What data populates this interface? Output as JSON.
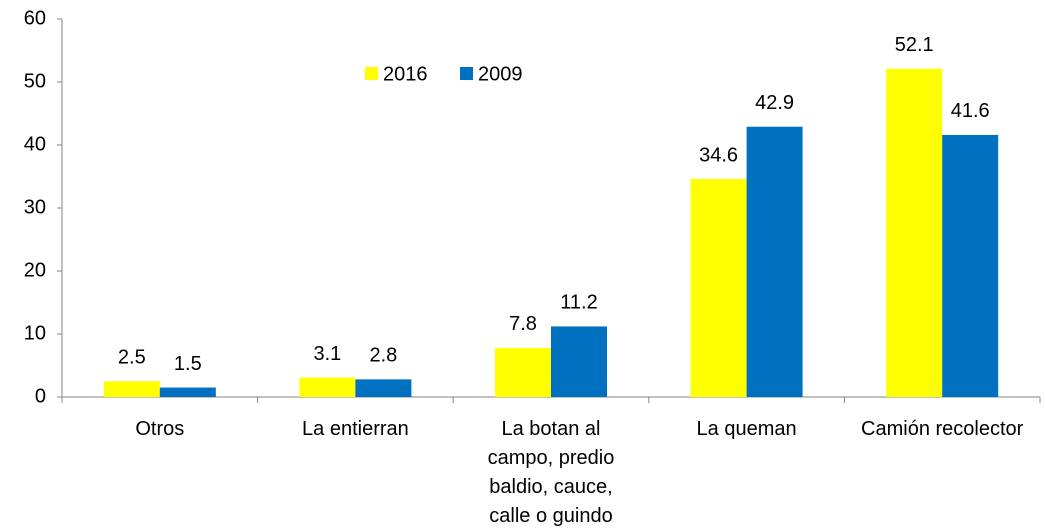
{
  "chart_data": {
    "type": "bar",
    "categories": [
      "Otros",
      "La entierran",
      "La botan al campo, predio baldio, cauce, calle o guindo",
      "La queman",
      "Camión recolector"
    ],
    "series": [
      {
        "name": "2016",
        "color": "#ffff00",
        "values": [
          2.5,
          3.1,
          7.8,
          34.6,
          52.1
        ]
      },
      {
        "name": "2009",
        "color": "#0070c0",
        "values": [
          1.5,
          2.8,
          11.2,
          42.9,
          41.6
        ]
      }
    ],
    "ylim": [
      0,
      60
    ],
    "yticks": [
      0,
      10,
      20,
      30,
      40,
      50,
      60
    ],
    "grid": false,
    "legend": "top"
  }
}
